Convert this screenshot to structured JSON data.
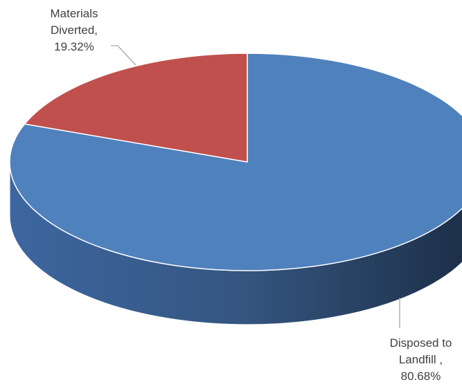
{
  "chart_data": {
    "type": "pie",
    "style": "3d",
    "title": "",
    "start_angle_deg": 90,
    "slices": [
      {
        "label": "Disposed to Landfill",
        "value": 80.68,
        "label_lines": [
          "Disposed to",
          "Landfill ,",
          "80.68%"
        ],
        "color": "#4F81BD",
        "side_color": "#385D8A"
      },
      {
        "label": "Materials Diverted",
        "value": 19.32,
        "label_lines": [
          "Materials",
          "Diverted,",
          "19.32%"
        ],
        "color": "#C0504D",
        "side_color": "#8C3836"
      }
    ],
    "legend": "none"
  }
}
